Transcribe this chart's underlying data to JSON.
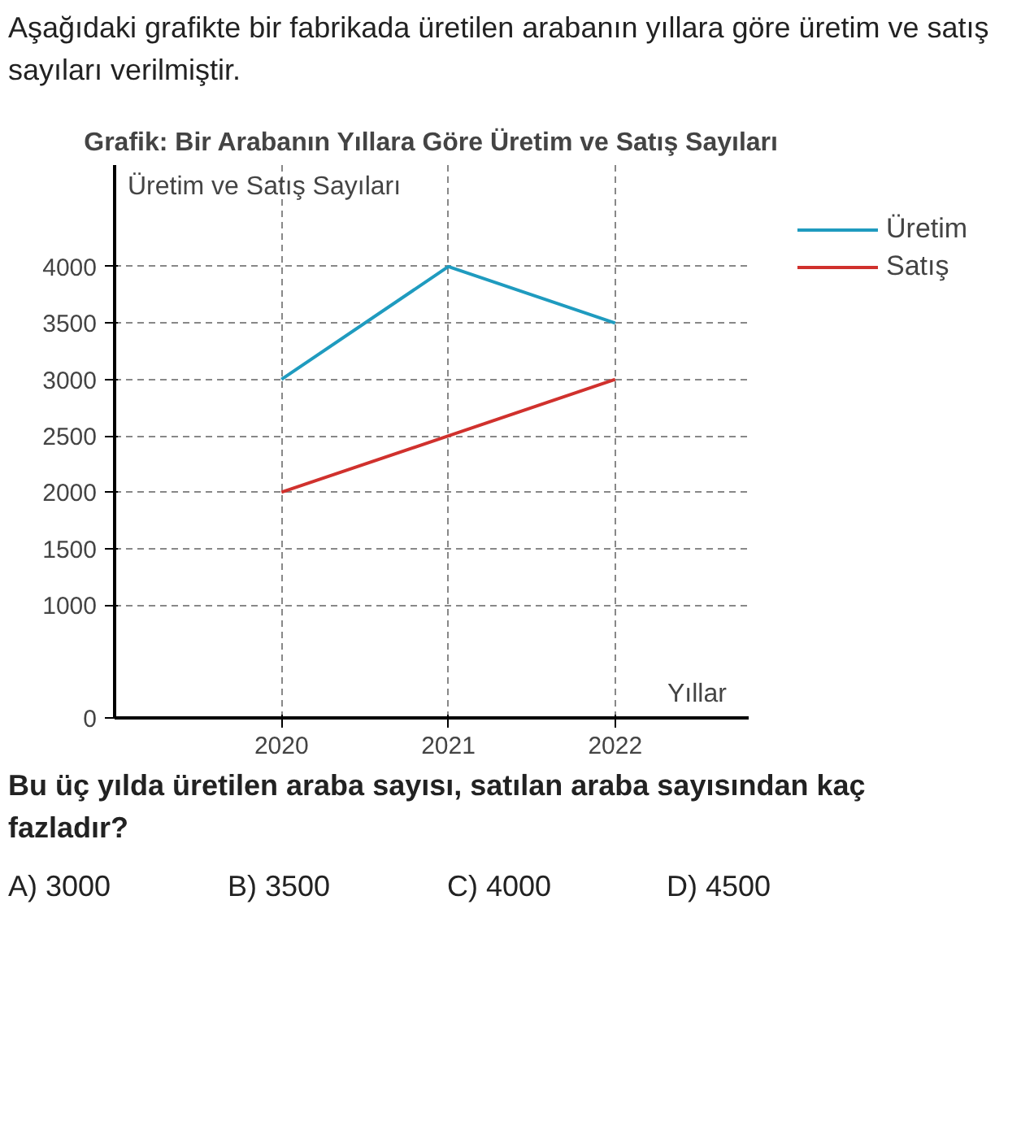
{
  "chart_data": {
    "type": "line",
    "title": "Grafik: Bir Arabanın Yıllara Göre Üretim ve Satış Sayıları",
    "xlabel": "Yıllar",
    "ylabel": "Üretim ve Satış Sayıları",
    "annotations": [
      "Aşağıdaki grafikte bir fabrikada üretilen arabanın yıllara göre üretim ve satış sayıları verilmiştir.",
      "Bu üç yılda üretilen araba sayısı, satılan araba sayısından kaç fazladır?",
      "A) 3000",
      "B) 3500",
      "C) 4000",
      "D) 4500"
    ],
    "x": [
      2020,
      2021,
      2022
    ],
    "series": [
      {
        "name": "Üretim",
        "color": "#1f9bbf",
        "values": [
          3000,
          4000,
          3500
        ]
      },
      {
        "name": "Satış",
        "color": "#d0312d",
        "values": [
          2000,
          2500,
          3000
        ]
      }
    ],
    "xlim": [
      2019,
      2022.8
    ],
    "ylim": [
      0,
      4900
    ],
    "xticks": [
      2020,
      2021,
      2022
    ],
    "yticks": [
      0,
      1000,
      1500,
      2000,
      2500,
      3000,
      3500,
      4000
    ],
    "grid": true,
    "legend": "right",
    "marker": "none",
    "line_style": "solid"
  }
}
